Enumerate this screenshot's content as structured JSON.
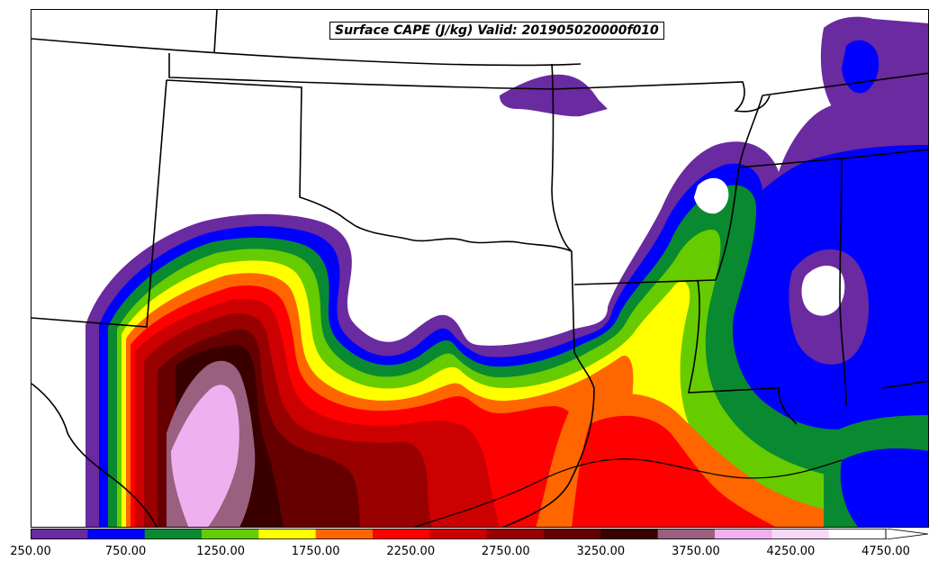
{
  "title": "Surface CAPE (J/kg) Valid: 201905020000f010",
  "colorbar": {
    "colors": [
      "#6a2aa0",
      "#0000ff",
      "#0a8a30",
      "#66cc00",
      "#ffff00",
      "#ff6600",
      "#ff0000",
      "#cc0000",
      "#990000",
      "#660000",
      "#3a0000",
      "#9a6080",
      "#f0b0f0",
      "#f8d8f8",
      "#ffffff"
    ],
    "tick_labels": [
      "250.00",
      "750.00",
      "1250.00",
      "1750.00",
      "2250.00",
      "2750.00",
      "3250.00",
      "3750.00",
      "4250.00",
      "4750.00"
    ]
  }
}
